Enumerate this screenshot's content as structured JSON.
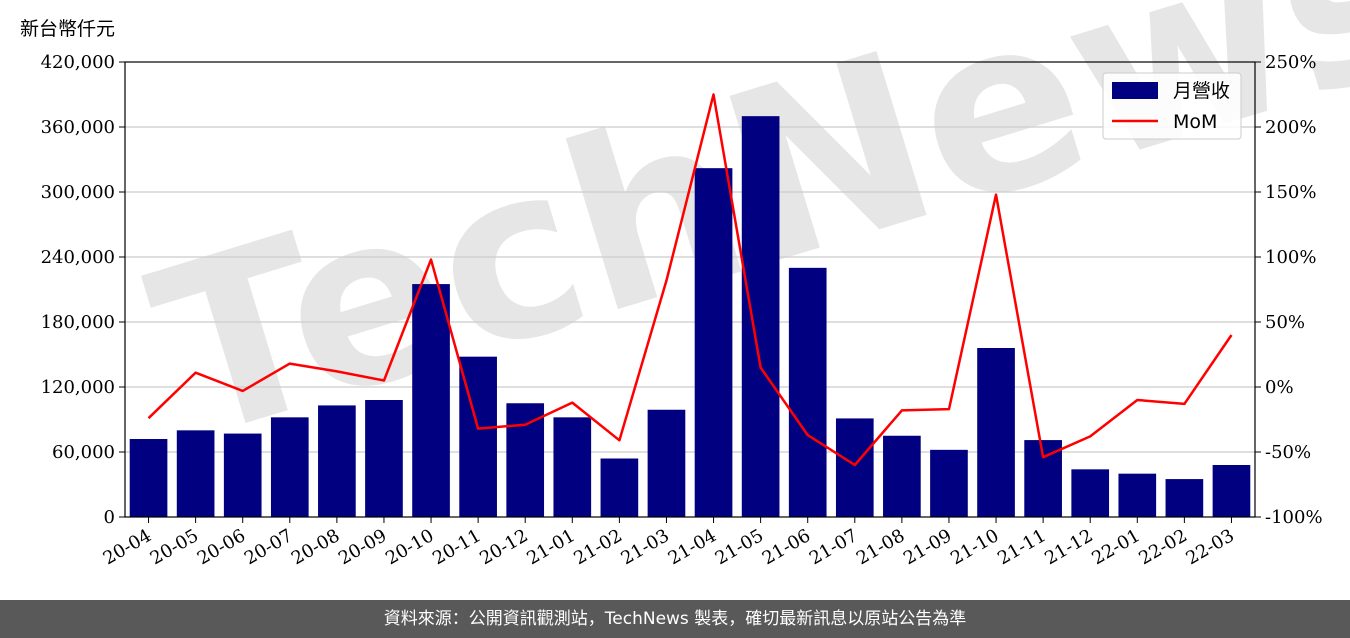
{
  "unit_label": "新台幣仟元",
  "footer_text": "資料來源：公開資訊觀測站，TechNews 製表，確切最新訊息以原站公告為準",
  "watermark_text": "TechNews",
  "colors": {
    "bar": "#000080",
    "line": "#ff0000",
    "grid": "#cccccc",
    "footer_bg": "#595959"
  },
  "chart_data": {
    "type": "bar",
    "categories": [
      "20-04",
      "20-05",
      "20-06",
      "20-07",
      "20-08",
      "20-09",
      "20-10",
      "20-11",
      "20-12",
      "21-01",
      "21-02",
      "21-03",
      "21-04",
      "21-05",
      "21-06",
      "21-07",
      "21-08",
      "21-09",
      "21-10",
      "21-11",
      "21-12",
      "22-01",
      "22-02",
      "22-03"
    ],
    "series": [
      {
        "name": "月營收",
        "type": "bar",
        "axis": "left",
        "values": [
          72000,
          80000,
          77000,
          92000,
          103000,
          108000,
          215000,
          148000,
          105000,
          92000,
          54000,
          99000,
          322000,
          370000,
          230000,
          91000,
          75000,
          62000,
          156000,
          71000,
          44000,
          40000,
          35000,
          48000
        ]
      },
      {
        "name": "MoM",
        "type": "line",
        "axis": "right",
        "values": [
          -24,
          11,
          -3,
          18,
          12,
          5,
          98,
          -32,
          -29,
          -12,
          -41,
          82,
          225,
          15,
          -37,
          -60,
          -18,
          -17,
          148,
          -54,
          -38,
          -10,
          -13,
          40
        ]
      }
    ],
    "left_axis": {
      "ylim": [
        0,
        420000
      ],
      "ticks": [
        "0",
        "60,000",
        "120,000",
        "180,000",
        "240,000",
        "300,000",
        "360,000",
        "420,000"
      ]
    },
    "right_axis": {
      "ylim": [
        -100,
        250
      ],
      "ticks": [
        "-100%",
        "-50%",
        "0%",
        "50%",
        "100%",
        "150%",
        "200%",
        "250%"
      ]
    },
    "grid": "horizontal",
    "legend_position": "top-right"
  }
}
